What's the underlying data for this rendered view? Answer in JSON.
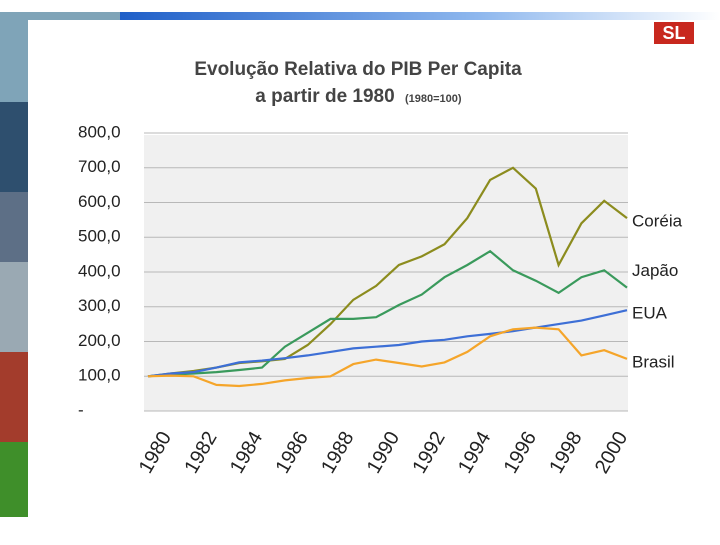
{
  "logo": "SL",
  "chart_data": {
    "type": "line",
    "title": "Evolução Relativa do PIB Per Capita",
    "subtitle": "a partir de 1980",
    "subtitle_note": "(1980=100)",
    "categories": [
      "1980",
      null,
      "1982",
      null,
      "1984",
      null,
      "1986",
      null,
      "1988",
      null,
      "1990",
      null,
      "1992",
      null,
      "1994",
      null,
      "1996",
      null,
      "1998",
      null,
      "2000",
      null
    ],
    "series": [
      {
        "name": "Coréia",
        "color": "#8c8c1e",
        "values": [
          100,
          108,
          115,
          125,
          138,
          143,
          150,
          190,
          250,
          320,
          360,
          420,
          445,
          480,
          555,
          665,
          700,
          640,
          420,
          540,
          605,
          555
        ]
      },
      {
        "name": "Japão",
        "color": "#3a9a5c",
        "values": [
          100,
          105,
          108,
          112,
          118,
          125,
          185,
          225,
          265,
          265,
          270,
          305,
          335,
          385,
          420,
          460,
          405,
          375,
          340,
          385,
          405,
          355
        ]
      },
      {
        "name": "EUA",
        "color": "#3d6fd6",
        "values": [
          100,
          108,
          112,
          125,
          140,
          145,
          152,
          160,
          170,
          180,
          185,
          190,
          200,
          205,
          215,
          222,
          230,
          240,
          250,
          260,
          275,
          290
        ]
      },
      {
        "name": "Brasil",
        "color": "#f5a52a",
        "values": [
          100,
          102,
          100,
          75,
          72,
          78,
          88,
          95,
          100,
          135,
          148,
          138,
          128,
          140,
          170,
          215,
          235,
          240,
          235,
          160,
          175,
          150
        ]
      }
    ],
    "ylim": [
      0,
      800
    ],
    "yticks": [
      {
        "value": 0,
        "label": "-"
      },
      {
        "value": 100,
        "label": "100,0"
      },
      {
        "value": 200,
        "label": "200,0"
      },
      {
        "value": 300,
        "label": "300,0"
      },
      {
        "value": 400,
        "label": "400,0"
      },
      {
        "value": 500,
        "label": "500,0"
      },
      {
        "value": 600,
        "label": "600,0"
      },
      {
        "value": 700,
        "label": "700,0"
      },
      {
        "value": 800,
        "label": "800,0"
      }
    ],
    "grid": true
  }
}
